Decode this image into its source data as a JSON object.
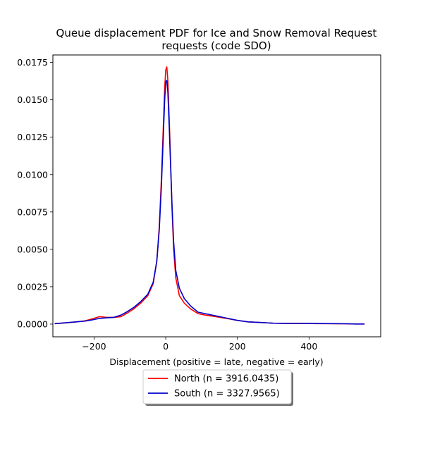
{
  "chart_data": {
    "type": "line",
    "title_line1": "Queue displacement PDF for Ice and Snow Removal Request",
    "title_line2": "requests (code SDO)",
    "xlabel": "Displacement (positive = late, negative = early)",
    "ylabel": "",
    "xlim": [
      -315,
      600
    ],
    "ylim": [
      -0.00085,
      0.018
    ],
    "x_ticks": [
      -200,
      0,
      200,
      400
    ],
    "x_tick_labels": [
      "−200",
      "0",
      "200",
      "400"
    ],
    "y_ticks": [
      0.0,
      0.0025,
      0.005,
      0.0075,
      0.01,
      0.0125,
      0.015,
      0.0175
    ],
    "y_tick_labels": [
      "0.0000",
      "0.0025",
      "0.0050",
      "0.0075",
      "0.0100",
      "0.0125",
      "0.0150",
      "0.0175"
    ],
    "grid": false,
    "legend_placement": "below-center",
    "series": [
      {
        "name": "North (n = 3916.0435)",
        "color": "#ff0000",
        "points": [
          [
            -310,
            2e-05
          ],
          [
            -280,
            8e-05
          ],
          [
            -250,
            0.00015
          ],
          [
            -225,
            0.00022
          ],
          [
            -205,
            0.00035
          ],
          [
            -185,
            0.0005
          ],
          [
            -165,
            0.00045
          ],
          [
            -145,
            0.00045
          ],
          [
            -125,
            0.0005
          ],
          [
            -110,
            0.0007
          ],
          [
            -90,
            0.001
          ],
          [
            -70,
            0.0014
          ],
          [
            -50,
            0.0019
          ],
          [
            -35,
            0.0027
          ],
          [
            -25,
            0.0042
          ],
          [
            -18,
            0.0065
          ],
          [
            -12,
            0.0098
          ],
          [
            -7,
            0.013
          ],
          [
            -3,
            0.0158
          ],
          [
            0,
            0.017
          ],
          [
            3,
            0.0172
          ],
          [
            6,
            0.0163
          ],
          [
            10,
            0.0135
          ],
          [
            14,
            0.0105
          ],
          [
            18,
            0.0075
          ],
          [
            22,
            0.005
          ],
          [
            28,
            0.0031
          ],
          [
            38,
            0.0019
          ],
          [
            52,
            0.0014
          ],
          [
            70,
            0.001
          ],
          [
            90,
            0.0007
          ],
          [
            110,
            0.0006
          ],
          [
            140,
            0.0005
          ],
          [
            170,
            0.00038
          ],
          [
            200,
            0.00025
          ],
          [
            230,
            0.00015
          ],
          [
            270,
            0.0001
          ],
          [
            300,
            6e-05
          ],
          [
            340,
            4e-05
          ],
          [
            380,
            5e-05
          ],
          [
            420,
            3e-05
          ],
          [
            460,
            3e-05
          ],
          [
            500,
            2e-05
          ],
          [
            530,
            1e-05
          ],
          [
            555,
            1e-05
          ]
        ]
      },
      {
        "name": "South (n = 3327.9565)",
        "color": "#0000cc",
        "points": [
          [
            -310,
            3e-05
          ],
          [
            -280,
            9e-05
          ],
          [
            -250,
            0.00015
          ],
          [
            -225,
            0.0002
          ],
          [
            -205,
            0.00028
          ],
          [
            -185,
            0.00038
          ],
          [
            -165,
            0.00042
          ],
          [
            -145,
            0.00045
          ],
          [
            -125,
            0.0006
          ],
          [
            -110,
            0.0008
          ],
          [
            -90,
            0.0011
          ],
          [
            -70,
            0.0015
          ],
          [
            -50,
            0.002
          ],
          [
            -35,
            0.0028
          ],
          [
            -25,
            0.0042
          ],
          [
            -18,
            0.0063
          ],
          [
            -12,
            0.0093
          ],
          [
            -7,
            0.0124
          ],
          [
            -3,
            0.015
          ],
          [
            0,
            0.0162
          ],
          [
            3,
            0.0163
          ],
          [
            6,
            0.0155
          ],
          [
            10,
            0.013
          ],
          [
            14,
            0.0103
          ],
          [
            18,
            0.0077
          ],
          [
            22,
            0.0055
          ],
          [
            28,
            0.0036
          ],
          [
            38,
            0.0024
          ],
          [
            52,
            0.0017
          ],
          [
            70,
            0.0012
          ],
          [
            90,
            0.0008
          ],
          [
            110,
            0.0007
          ],
          [
            140,
            0.00055
          ],
          [
            170,
            0.0004
          ],
          [
            200,
            0.00025
          ],
          [
            230,
            0.00015
          ],
          [
            270,
            0.0001
          ],
          [
            300,
            6e-05
          ],
          [
            340,
            5e-05
          ],
          [
            380,
            5e-05
          ],
          [
            420,
            4e-05
          ],
          [
            460,
            3e-05
          ],
          [
            500,
            2e-05
          ],
          [
            530,
            1e-05
          ],
          [
            555,
            1e-05
          ]
        ]
      }
    ]
  }
}
